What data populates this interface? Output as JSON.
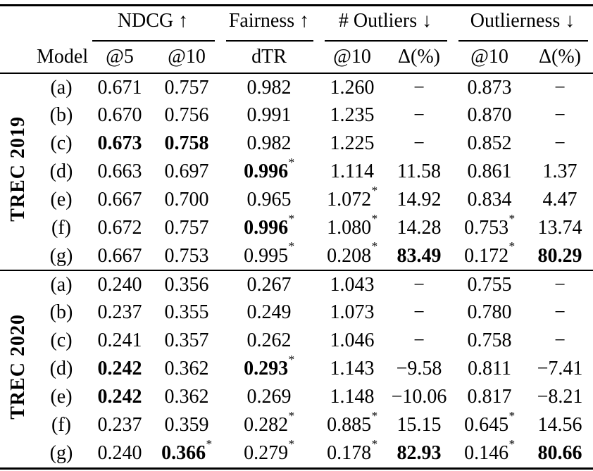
{
  "table": {
    "model_header": "Model",
    "groups": [
      {
        "label": "NDCG ↑"
      },
      {
        "label": "Fairness ↑"
      },
      {
        "label": "# Outliers ↓"
      },
      {
        "label": "Outlierness ↓"
      }
    ],
    "subheaders": [
      "@5",
      "@10",
      "dTR",
      "@10",
      "Δ(%)",
      "@10",
      "Δ(%)"
    ],
    "column_keys": [
      "ndcg-at5",
      "ndcg-at10",
      "dtr",
      "outliers-at10",
      "outliers-delta",
      "outlierness-at10",
      "outlierness-delta"
    ],
    "sections": [
      {
        "label": "TREC 2019",
        "rows": [
          {
            "model": "(a)",
            "cells": [
              {
                "t": "0.671"
              },
              {
                "t": "0.757"
              },
              {
                "t": "0.982"
              },
              {
                "t": "1.260"
              },
              {
                "t": "−"
              },
              {
                "t": "0.873"
              },
              {
                "t": "−"
              }
            ]
          },
          {
            "model": "(b)",
            "cells": [
              {
                "t": "0.670"
              },
              {
                "t": "0.756"
              },
              {
                "t": "0.991"
              },
              {
                "t": "1.235"
              },
              {
                "t": "−"
              },
              {
                "t": "0.870"
              },
              {
                "t": "−"
              }
            ]
          },
          {
            "model": "(c)",
            "cells": [
              {
                "t": "0.673",
                "b": true
              },
              {
                "t": "0.758",
                "b": true
              },
              {
                "t": "0.982"
              },
              {
                "t": "1.225"
              },
              {
                "t": "−"
              },
              {
                "t": "0.852"
              },
              {
                "t": "−"
              }
            ]
          },
          {
            "model": "(d)",
            "cells": [
              {
                "t": "0.663"
              },
              {
                "t": "0.697"
              },
              {
                "t": "0.996",
                "b": true,
                "star": true
              },
              {
                "t": "1.114"
              },
              {
                "t": "11.58"
              },
              {
                "t": "0.861"
              },
              {
                "t": "1.37"
              }
            ]
          },
          {
            "model": "(e)",
            "cells": [
              {
                "t": "0.667"
              },
              {
                "t": "0.700"
              },
              {
                "t": "0.965"
              },
              {
                "t": "1.072",
                "star": true
              },
              {
                "t": "14.92"
              },
              {
                "t": "0.834"
              },
              {
                "t": "4.47"
              }
            ]
          },
          {
            "model": "(f)",
            "cells": [
              {
                "t": "0.672"
              },
              {
                "t": "0.757"
              },
              {
                "t": "0.996",
                "b": true,
                "star": true
              },
              {
                "t": "1.080",
                "star": true
              },
              {
                "t": "14.28"
              },
              {
                "t": "0.753",
                "star": true
              },
              {
                "t": "13.74"
              }
            ]
          },
          {
            "model": "(g)",
            "cells": [
              {
                "t": "0.667"
              },
              {
                "t": "0.753"
              },
              {
                "t": "0.995",
                "star": true
              },
              {
                "t": "0.208",
                "star": true
              },
              {
                "t": "83.49",
                "b": true
              },
              {
                "t": "0.172",
                "star": true
              },
              {
                "t": "80.29",
                "b": true
              }
            ]
          }
        ]
      },
      {
        "label": "TREC 2020",
        "rows": [
          {
            "model": "(a)",
            "cells": [
              {
                "t": "0.240"
              },
              {
                "t": "0.356"
              },
              {
                "t": "0.267"
              },
              {
                "t": "1.043"
              },
              {
                "t": "−"
              },
              {
                "t": "0.755"
              },
              {
                "t": "−"
              }
            ]
          },
          {
            "model": "(b)",
            "cells": [
              {
                "t": "0.237"
              },
              {
                "t": "0.355"
              },
              {
                "t": "0.249"
              },
              {
                "t": "1.073"
              },
              {
                "t": "−"
              },
              {
                "t": "0.780"
              },
              {
                "t": "−"
              }
            ]
          },
          {
            "model": "(c)",
            "cells": [
              {
                "t": "0.241"
              },
              {
                "t": "0.357"
              },
              {
                "t": "0.262"
              },
              {
                "t": "1.046"
              },
              {
                "t": "−"
              },
              {
                "t": "0.758"
              },
              {
                "t": "−"
              }
            ]
          },
          {
            "model": "(d)",
            "cells": [
              {
                "t": "0.242",
                "b": true
              },
              {
                "t": "0.362"
              },
              {
                "t": "0.293",
                "b": true,
                "star": true
              },
              {
                "t": "1.143"
              },
              {
                "t": "−9.58"
              },
              {
                "t": "0.811"
              },
              {
                "t": "−7.41"
              }
            ]
          },
          {
            "model": "(e)",
            "cells": [
              {
                "t": "0.242",
                "b": true
              },
              {
                "t": "0.362"
              },
              {
                "t": "0.269"
              },
              {
                "t": "1.148"
              },
              {
                "t": "−10.06"
              },
              {
                "t": "0.817"
              },
              {
                "t": "−8.21"
              }
            ]
          },
          {
            "model": "(f)",
            "cells": [
              {
                "t": "0.237"
              },
              {
                "t": "0.359"
              },
              {
                "t": "0.282",
                "star": true
              },
              {
                "t": "0.885",
                "star": true
              },
              {
                "t": "15.15"
              },
              {
                "t": "0.645",
                "star": true
              },
              {
                "t": "14.56"
              }
            ]
          },
          {
            "model": "(g)",
            "cells": [
              {
                "t": "0.240"
              },
              {
                "t": "0.366",
                "b": true,
                "star": true
              },
              {
                "t": "0.279",
                "star": true
              },
              {
                "t": "0.178",
                "star": true
              },
              {
                "t": "82.93",
                "b": true
              },
              {
                "t": "0.146",
                "star": true
              },
              {
                "t": "80.66",
                "b": true
              }
            ]
          }
        ]
      }
    ]
  }
}
